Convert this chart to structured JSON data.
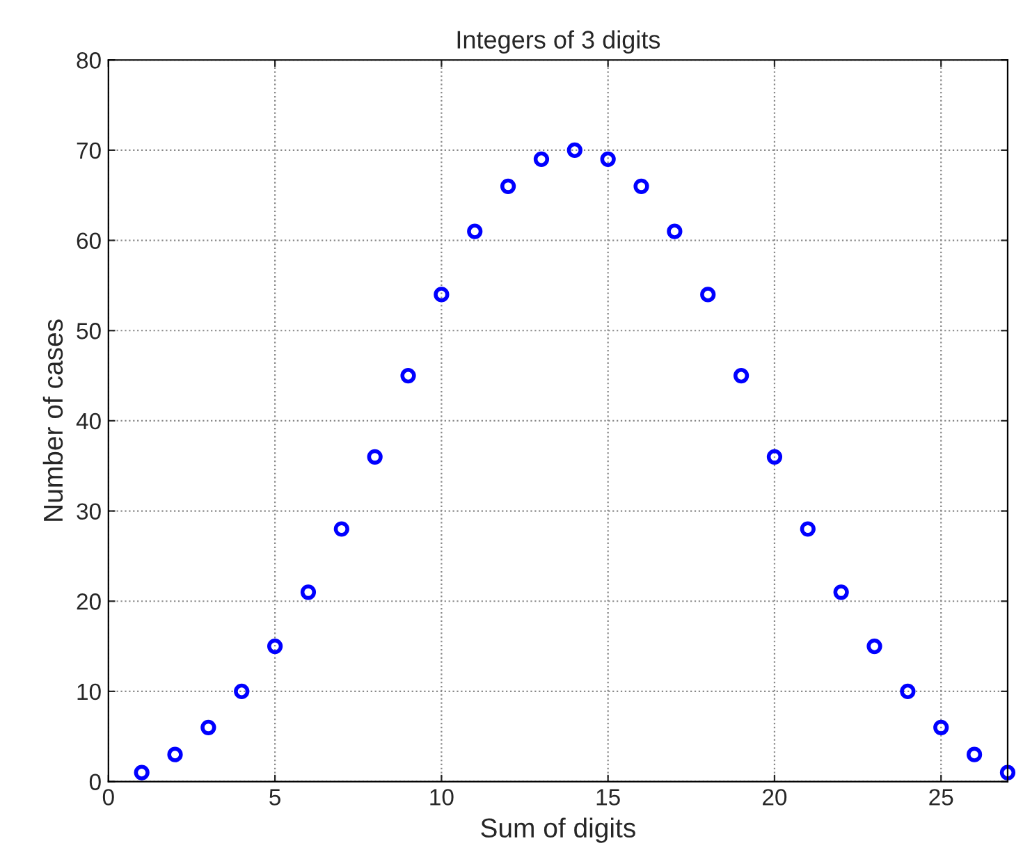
{
  "chart_data": {
    "type": "scatter",
    "title": "Integers of 3 digits",
    "xlabel": "Sum of digits",
    "ylabel": "Number of cases",
    "x": [
      1,
      2,
      3,
      4,
      5,
      6,
      7,
      8,
      9,
      10,
      11,
      12,
      13,
      14,
      15,
      16,
      17,
      18,
      19,
      20,
      21,
      22,
      23,
      24,
      25,
      26,
      27
    ],
    "series": [
      {
        "color": "#0000ff",
        "values": [
          1,
          3,
          6,
          10,
          15,
          21,
          28,
          36,
          45,
          54,
          61,
          66,
          69,
          70,
          69,
          66,
          61,
          54,
          45,
          36,
          28,
          21,
          15,
          10,
          6,
          3,
          1
        ]
      }
    ],
    "xlim": [
      0,
      27
    ],
    "xticks": [
      0,
      5,
      10,
      15,
      20,
      25
    ],
    "ylim": [
      0,
      80
    ],
    "yticks": [
      0,
      10,
      20,
      30,
      40,
      50,
      60,
      70,
      80
    ],
    "grid": true,
    "marker": "circle",
    "line_style": "dotted"
  }
}
